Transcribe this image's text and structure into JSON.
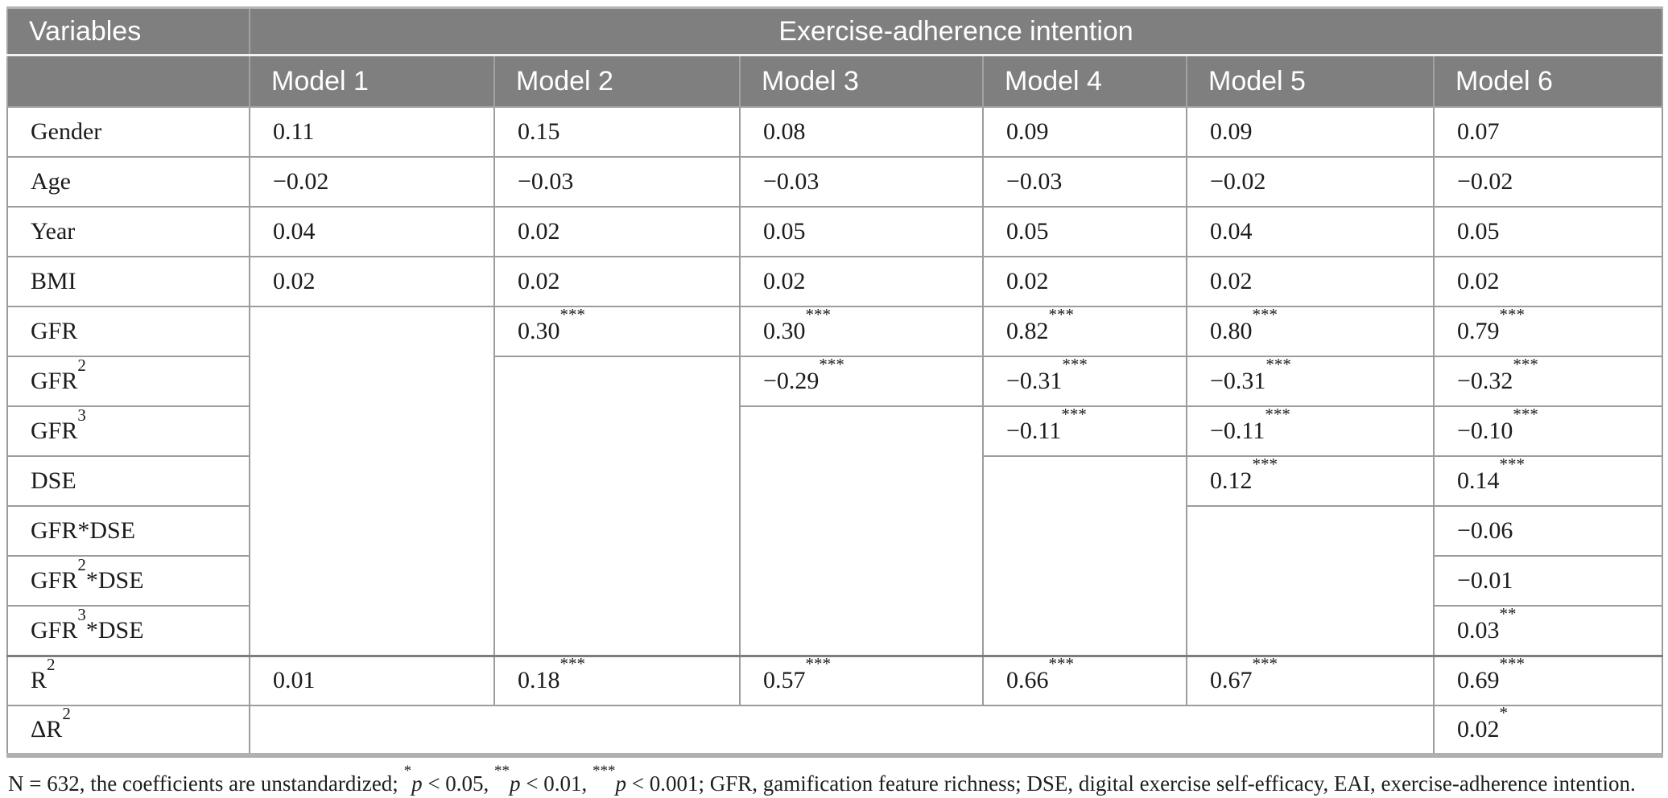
{
  "colors": {
    "header_bg": "#7f7f7f",
    "header_text": "#ffffff",
    "body_text": "#1b1b1b",
    "grid_line": "#9c9c9c"
  },
  "table": {
    "corner_header": "Variables",
    "title": "Exercise-adherence intention",
    "model_headers": [
      "Model 1",
      "Model 2",
      "Model 3",
      "Model 4",
      "Model 5",
      "Model 6"
    ],
    "rows": [
      {
        "label": "Gender",
        "cells": [
          {
            "v": "0.11"
          },
          {
            "v": "0.15"
          },
          {
            "v": "0.08"
          },
          {
            "v": "0.09"
          },
          {
            "v": "0.09"
          },
          {
            "v": "0.07"
          }
        ]
      },
      {
        "label": "Age",
        "cells": [
          {
            "v": "−0.02"
          },
          {
            "v": "−0.03"
          },
          {
            "v": "−0.03"
          },
          {
            "v": "−0.03"
          },
          {
            "v": "−0.02"
          },
          {
            "v": "−0.02"
          }
        ]
      },
      {
        "label": "Year",
        "cells": [
          {
            "v": "0.04"
          },
          {
            "v": "0.02"
          },
          {
            "v": "0.05"
          },
          {
            "v": "0.05"
          },
          {
            "v": "0.04"
          },
          {
            "v": "0.05"
          }
        ]
      },
      {
        "label": "BMI",
        "cells": [
          {
            "v": "0.02"
          },
          {
            "v": "0.02"
          },
          {
            "v": "0.02"
          },
          {
            "v": "0.02"
          },
          {
            "v": "0.02"
          },
          {
            "v": "0.02"
          }
        ]
      },
      {
        "label": "GFR",
        "cells": [
          null,
          {
            "v": "0.30",
            "s": "***"
          },
          {
            "v": "0.30",
            "s": "***"
          },
          {
            "v": "0.82",
            "s": "***"
          },
          {
            "v": "0.80",
            "s": "***"
          },
          {
            "v": "0.79",
            "s": "***"
          }
        ]
      },
      {
        "label": "GFR",
        "sup": "2",
        "cells": [
          null,
          null,
          {
            "v": "−0.29",
            "s": "***"
          },
          {
            "v": "−0.31",
            "s": "***"
          },
          {
            "v": "−0.31",
            "s": "***"
          },
          {
            "v": "−0.32",
            "s": "***"
          }
        ]
      },
      {
        "label": "GFR",
        "sup": "3",
        "cells": [
          null,
          null,
          null,
          {
            "v": "−0.11",
            "s": "***"
          },
          {
            "v": "−0.11",
            "s": "***"
          },
          {
            "v": "−0.10",
            "s": "***"
          }
        ]
      },
      {
        "label": "DSE",
        "cells": [
          null,
          null,
          null,
          null,
          {
            "v": "0.12",
            "s": "***"
          },
          {
            "v": "0.14",
            "s": "***"
          }
        ]
      },
      {
        "label": "GFR*DSE",
        "cells": [
          null,
          null,
          null,
          null,
          null,
          {
            "v": "−0.06"
          }
        ]
      },
      {
        "label": "GFR",
        "sup": "2",
        "suffix": "*DSE",
        "cells": [
          null,
          null,
          null,
          null,
          null,
          {
            "v": "−0.01"
          }
        ]
      },
      {
        "label": "GFR",
        "sup": "3",
        "suffix": "*DSE",
        "cells": [
          null,
          null,
          null,
          null,
          null,
          {
            "v": "0.03",
            "s": "**"
          }
        ]
      },
      {
        "label": "R",
        "sup": "2",
        "cells": [
          {
            "v": "0.01"
          },
          {
            "v": "0.18",
            "s": "***"
          },
          {
            "v": "0.57",
            "s": "***"
          },
          {
            "v": "0.66",
            "s": "***"
          },
          {
            "v": "0.67",
            "s": "***"
          },
          {
            "v": "0.69",
            "s": "***"
          }
        ]
      },
      {
        "label": "ΔR",
        "sup": "2",
        "cells": [
          null,
          null,
          null,
          null,
          null,
          {
            "v": "0.02",
            "s": "*"
          }
        ]
      }
    ]
  },
  "footnote": {
    "segments": [
      {
        "t": "N = 632, the coefficients are unstandardized; "
      },
      {
        "sup": "*"
      },
      {
        "i": "p"
      },
      {
        "t": " < 0.05, "
      },
      {
        "sup": "**"
      },
      {
        "i": "p"
      },
      {
        "t": " < 0.01, "
      },
      {
        "sup": "***"
      },
      {
        "i": "p"
      },
      {
        "t": " < 0.001; GFR, gamification feature richness; DSE, digital exercise self-efficacy, EAI, exercise-adherence intention."
      }
    ]
  }
}
